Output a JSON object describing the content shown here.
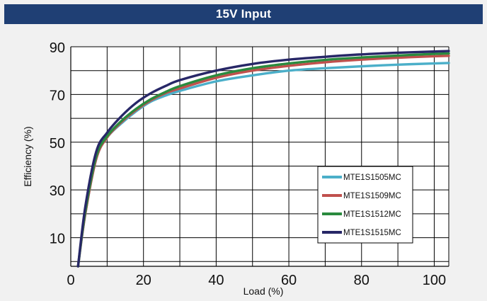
{
  "chart_data": {
    "type": "line",
    "title": "15V Input",
    "xlabel": "Load (%)",
    "ylabel": "Efficiency (%)",
    "xlim": [
      0,
      104
    ],
    "ylim": [
      -2,
      90
    ],
    "xticks": [
      0,
      20,
      40,
      60,
      80,
      100
    ],
    "yticks": [
      10,
      30,
      50,
      70,
      90
    ],
    "grid": true,
    "legend_position": "lower-right",
    "series": [
      {
        "name": "MTE1S1505MC",
        "color": "#4bafc9",
        "x": [
          2,
          4,
          7,
          10,
          14,
          18,
          22,
          26,
          30,
          40,
          50,
          60,
          70,
          80,
          90,
          100,
          104
        ],
        "y": [
          -2,
          20,
          43,
          52,
          58,
          63,
          67,
          69.5,
          71.5,
          75.5,
          78,
          80,
          81,
          81.8,
          82.5,
          83,
          83.2
        ]
      },
      {
        "name": "MTE1S1509MC",
        "color": "#c0504d",
        "x": [
          2,
          4,
          7,
          10,
          14,
          18,
          22,
          26,
          30,
          40,
          50,
          60,
          70,
          80,
          90,
          100,
          104
        ],
        "y": [
          -2,
          20,
          43,
          52,
          58.5,
          63.5,
          67.5,
          70.5,
          72.5,
          77,
          80,
          82,
          83.5,
          84.6,
          85.4,
          86,
          86.2
        ]
      },
      {
        "name": "MTE1S1512MC",
        "color": "#2a8a3e",
        "x": [
          2,
          4,
          7,
          10,
          14,
          18,
          22,
          26,
          30,
          40,
          50,
          60,
          70,
          80,
          90,
          100,
          104
        ],
        "y": [
          -2,
          21,
          44,
          52.5,
          59,
          64,
          68,
          71,
          73.5,
          78,
          81,
          83,
          84.5,
          85.5,
          86.3,
          87,
          87.2
        ]
      },
      {
        "name": "MTE1S1515MC",
        "color": "#272767",
        "x": [
          2,
          4,
          7,
          10,
          14,
          18,
          22,
          26,
          30,
          40,
          50,
          60,
          70,
          80,
          90,
          100,
          104
        ],
        "y": [
          -2,
          23,
          46,
          54,
          61,
          66.5,
          70.5,
          73.5,
          76,
          80,
          82.8,
          84.6,
          85.8,
          86.8,
          87.5,
          88,
          88.2
        ]
      }
    ]
  }
}
